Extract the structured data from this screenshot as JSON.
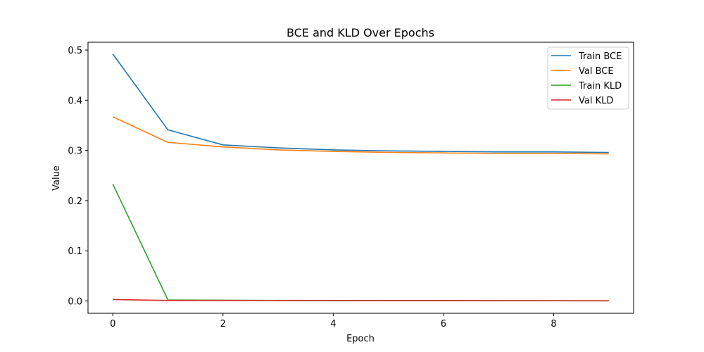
{
  "chart_data": {
    "type": "line",
    "title": "BCE and KLD Over Epochs",
    "xlabel": "Epoch",
    "ylabel": "Value",
    "x": [
      0,
      1,
      2,
      3,
      4,
      5,
      6,
      7,
      8,
      9
    ],
    "xlim": [
      -0.45,
      9.45
    ],
    "ylim": [
      -0.0245,
      0.5155
    ],
    "xticks": [
      0,
      2,
      4,
      6,
      8
    ],
    "yticks": [
      0.0,
      0.1,
      0.2,
      0.3,
      0.4,
      0.5
    ],
    "ytick_labels": [
      "0.0",
      "0.1",
      "0.2",
      "0.3",
      "0.4",
      "0.5"
    ],
    "grid": false,
    "legend": "top-right",
    "series": [
      {
        "name": "Train BCE",
        "color": "#1f77b4",
        "values": [
          0.492,
          0.341,
          0.311,
          0.305,
          0.301,
          0.299,
          0.298,
          0.297,
          0.297,
          0.296
        ]
      },
      {
        "name": "Val BCE",
        "color": "#ff7f0e",
        "values": [
          0.367,
          0.316,
          0.307,
          0.301,
          0.298,
          0.296,
          0.295,
          0.294,
          0.294,
          0.293
        ]
      },
      {
        "name": "Train KLD",
        "color": "#2ca02c",
        "values": [
          0.233,
          0.002,
          0.0015,
          0.0012,
          0.001,
          0.0009,
          0.0008,
          0.0007,
          0.0006,
          0.0005
        ]
      },
      {
        "name": "Val KLD",
        "color": "#d62728",
        "values": [
          0.003,
          0.001,
          0.001,
          0.0009,
          0.0008,
          0.0007,
          0.0006,
          0.0005,
          0.0004,
          0.0003
        ]
      }
    ]
  }
}
